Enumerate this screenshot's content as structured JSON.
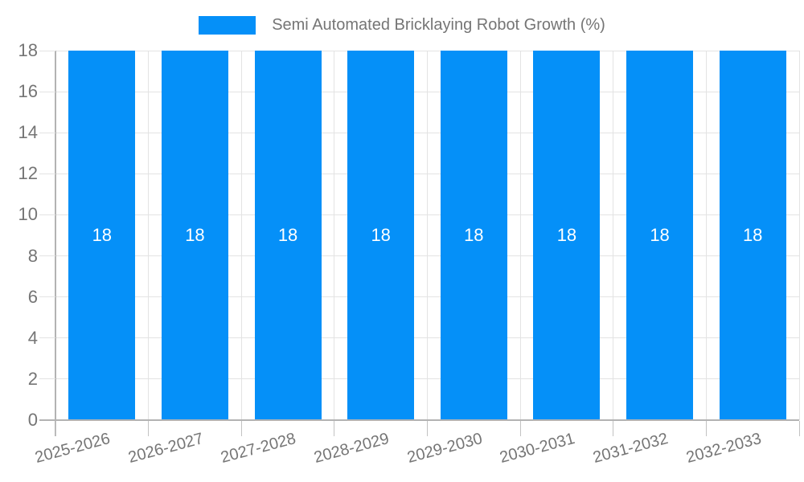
{
  "chart_data": {
    "type": "bar",
    "title": "Semi Automated Bricklaying Robot Growth (%)",
    "legend_position": "top",
    "categories": [
      "2025-2026",
      "2026-2027",
      "2027-2028",
      "2028-2029",
      "2029-2030",
      "2030-2031",
      "2031-2032",
      "2032-2033"
    ],
    "series": [
      {
        "name": "Semi Automated Bricklaying Robot Growth (%)",
        "values": [
          18,
          18,
          18,
          18,
          18,
          18,
          18,
          18
        ]
      }
    ],
    "bar_value_labels": [
      "18",
      "18",
      "18",
      "18",
      "18",
      "18",
      "18",
      "18"
    ],
    "xlabel": "",
    "ylabel": "",
    "ylim": [
      0,
      18
    ],
    "yticks": [
      0,
      2,
      4,
      6,
      8,
      10,
      12,
      14,
      16,
      18
    ],
    "grid": true,
    "x_label_rotation_deg": -15,
    "colors": {
      "bar": "#0590f8",
      "grid_line": "#e3e3e3",
      "axis_line": "#b3b3b3",
      "tick_line": "#c2c2c2",
      "label_text": "#757575",
      "bar_label_text": "#ffffff",
      "background": "#ffffff"
    }
  }
}
